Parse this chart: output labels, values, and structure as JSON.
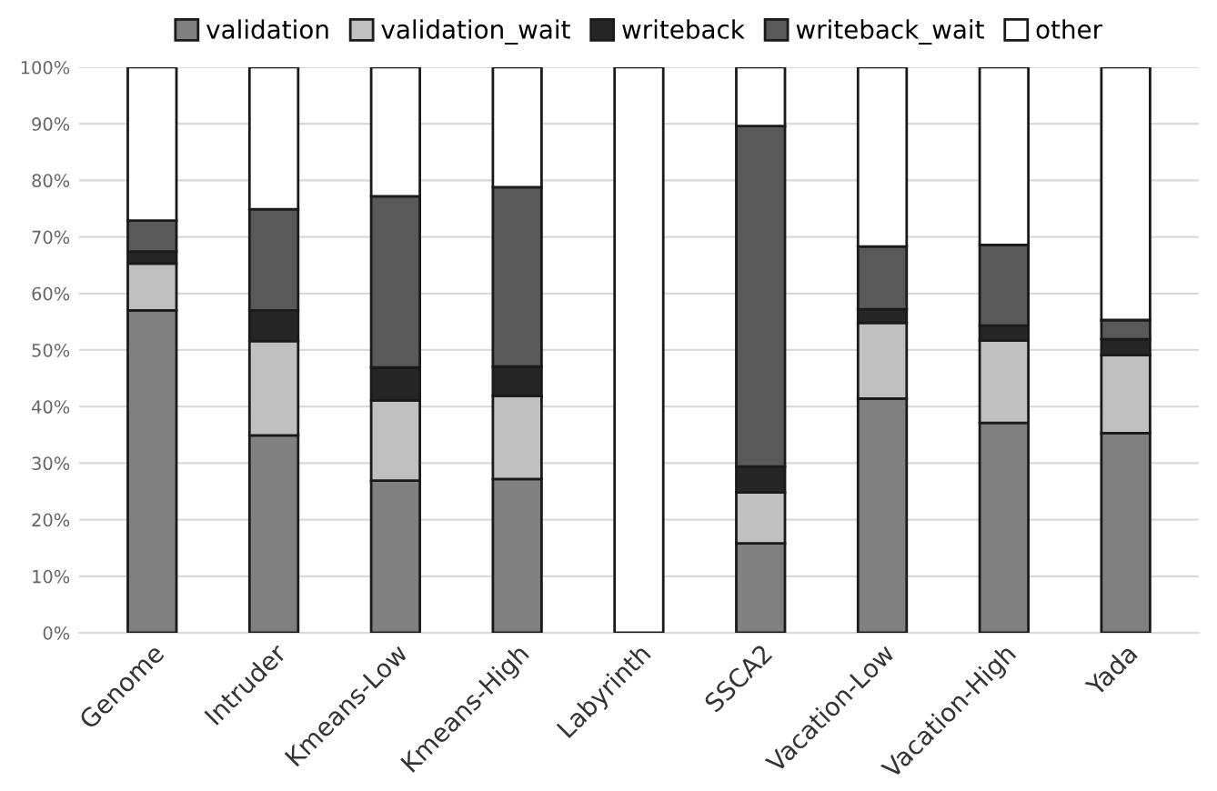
{
  "chart_data": {
    "type": "bar",
    "stacked": true,
    "categories": [
      "Genome",
      "Intruder",
      "Kmeans-Low",
      "Kmeans-High",
      "Labyrinth",
      "SSCA2",
      "Vacation-Low",
      "Vacation-High",
      "Yada"
    ],
    "series": [
      {
        "name": "validation",
        "color": "#808080",
        "values": [
          57.0,
          34.9,
          26.9,
          27.2,
          0,
          15.8,
          41.4,
          37.1,
          35.3
        ]
      },
      {
        "name": "validation_wait",
        "color": "#c0c0c0",
        "values": [
          8.3,
          16.7,
          14.2,
          14.7,
          0,
          9.0,
          13.4,
          14.6,
          13.8
        ]
      },
      {
        "name": "writeback",
        "color": "#262626",
        "values": [
          2.1,
          5.4,
          5.8,
          5.2,
          0,
          4.6,
          2.4,
          2.6,
          2.8
        ]
      },
      {
        "name": "writeback_wait",
        "color": "#595959",
        "values": [
          5.5,
          17.9,
          30.3,
          31.7,
          0,
          60.2,
          11.1,
          14.3,
          3.4
        ]
      },
      {
        "name": "other",
        "color": "#ffffff",
        "values": [
          27.1,
          25.1,
          22.8,
          21.2,
          100,
          10.4,
          31.7,
          31.4,
          44.7
        ]
      }
    ],
    "ylim": [
      0,
      100
    ],
    "yticks": [
      {
        "value": 0,
        "label": "0%"
      },
      {
        "value": 10,
        "label": "10%"
      },
      {
        "value": 20,
        "label": "20%"
      },
      {
        "value": 30,
        "label": "30%"
      },
      {
        "value": 40,
        "label": "40%"
      },
      {
        "value": 50,
        "label": "50%"
      },
      {
        "value": 60,
        "label": "60%"
      },
      {
        "value": 70,
        "label": "70%"
      },
      {
        "value": 80,
        "label": "80%"
      },
      {
        "value": 90,
        "label": "90%"
      },
      {
        "value": 100,
        "label": "100%"
      }
    ],
    "grid": "y",
    "legend": "top"
  }
}
